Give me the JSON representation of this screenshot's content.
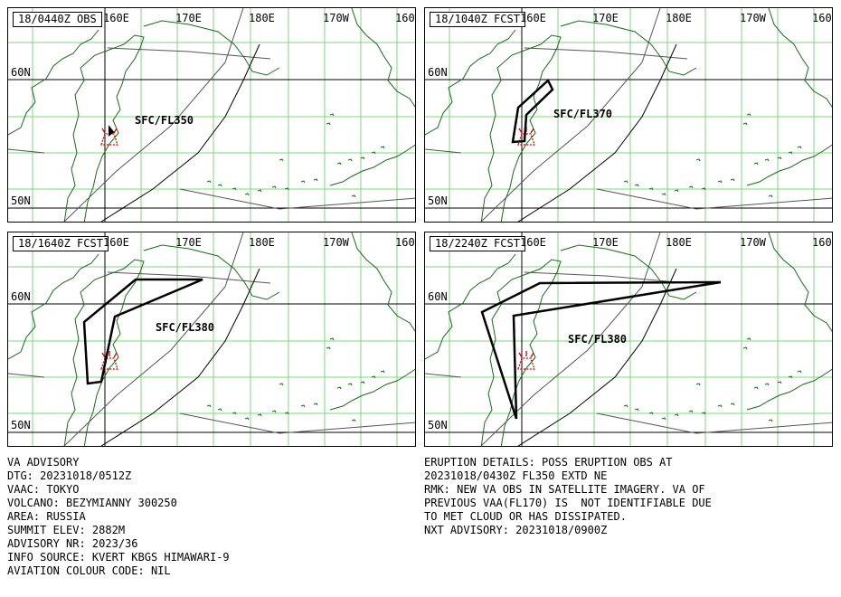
{
  "panels": [
    {
      "title": "18/0440Z OBS",
      "level": "SFC/FL350"
    },
    {
      "title": "18/1040Z FCST",
      "level": "SFC/FL370"
    },
    {
      "title": "18/1640Z FCST",
      "level": "SFC/FL380"
    },
    {
      "title": "18/2240Z FCST",
      "level": "SFC/FL380"
    }
  ],
  "grid_labels": {
    "lon": [
      "160E",
      "170E",
      "180E",
      "170W",
      "160"
    ],
    "lat": [
      "60N",
      "50N"
    ]
  },
  "colors": {
    "coast": "#1a6b1a",
    "grid": "#7fd87f",
    "volcano": "#dd0000",
    "ash": "#000000"
  },
  "advisory_left": [
    "VA ADVISORY",
    "DTG: 20231018/0512Z",
    "VAAC: TOKYO",
    "VOLCANO: BEZYMIANNY 300250",
    "AREA: RUSSIA",
    "SUMMIT ELEV: 2882M",
    "ADVISORY NR: 2023/36",
    "INFO SOURCE: KVERT KBGS HIMAWARI-9",
    "AVIATION COLOUR CODE: NIL"
  ],
  "advisory_right": [
    "ERUPTION DETAILS: POSS ERUPTION OBS AT",
    "20231018/0430Z FL350 EXTD NE",
    "RMK: NEW VA OBS IN SATELLITE IMAGERY. VA OF",
    "PREVIOUS VAA(FL170) IS  NOT IDENTIFIABLE DUE",
    "TO MET CLOUD OR HAS DISSIPATED.",
    "NXT ADVISORY: 20231018/0900Z"
  ]
}
